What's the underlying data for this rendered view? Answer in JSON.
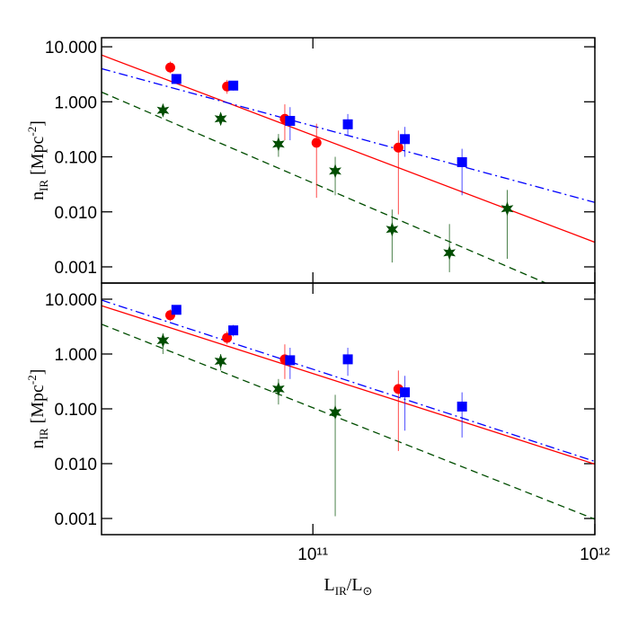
{
  "chart_data": [
    {
      "type": "scatter",
      "ylabel": [
        "n",
        "IR",
        " [Mpc",
        "-2",
        "]"
      ],
      "xscale": "log",
      "yscale": "log",
      "xlim": [
        17800000000.0,
        1000000000000.0
      ],
      "ylim": [
        0.000508,
        14.6
      ],
      "xticks": [
        100000000000.0,
        1000000000000.0
      ],
      "yticks": [
        {
          "value": 10,
          "label": "10.000"
        },
        {
          "value": 1,
          "label": "1.000"
        },
        {
          "value": 0.1,
          "label": "0.100"
        },
        {
          "value": 0.01,
          "label": "0.010"
        },
        {
          "value": 0.001,
          "label": "0.001"
        }
      ],
      "series": [
        {
          "color": "#ff0000",
          "marker": "circle",
          "x": [
            31200000000.0,
            49600000000.0,
            79500000000.0,
            103000000000.0,
            201000000000.0
          ],
          "values": [
            4.2,
            1.9,
            0.49,
            0.18,
            0.147
          ],
          "ylow": [
            3.3,
            1.4,
            0.2,
            0.018,
            0.009
          ],
          "yhigh": [
            5.4,
            2.5,
            0.9,
            0.4,
            0.3
          ]
        },
        {
          "color": "#0000ff",
          "marker": "square",
          "x": [
            32800000000.0,
            52200000000.0,
            83000000000.0,
            133000000000.0,
            212000000000.0,
            338000000000.0
          ],
          "values": [
            2.6,
            1.97,
            0.45,
            0.39,
            0.21,
            0.08
          ],
          "ylow": [
            2.2,
            1.6,
            0.2,
            0.25,
            0.1,
            0.02
          ],
          "yhigh": [
            3.1,
            2.4,
            0.8,
            0.6,
            0.35,
            0.14
          ]
        },
        {
          "color": "#004d00",
          "marker": "star",
          "x": [
            29400000000.0,
            47100000000.0,
            75500000000.0,
            120000000000.0,
            191000000000.0,
            305000000000.0,
            489000000000.0
          ],
          "values": [
            0.7,
            0.49,
            0.17,
            0.055,
            0.0048,
            0.0018,
            0.0114
          ],
          "ylow": [
            0.55,
            0.38,
            0.1,
            0.02,
            0.0012,
            0.0008,
            0.0014
          ],
          "yhigh": [
            0.85,
            0.62,
            0.26,
            0.1,
            0.011,
            0.006,
            0.025
          ]
        }
      ],
      "fits": [
        {
          "color": "#ff0000",
          "dash": "solid",
          "x": [
            17800000000.0,
            1000000000000.0
          ],
          "values": [
            7.1,
            0.0028
          ]
        },
        {
          "color": "#0000ff",
          "dash": "dashdot",
          "x": [
            17800000000.0,
            1000000000000.0
          ],
          "values": [
            4.0,
            0.0148
          ]
        },
        {
          "color": "#004d00",
          "dash": "dashed",
          "x": [
            17800000000.0,
            1000000000000.0
          ],
          "values": [
            1.5,
            0.00021
          ]
        }
      ]
    },
    {
      "type": "scatter",
      "ylabel": [
        "n",
        "IR",
        " [Mpc",
        "-2",
        "]"
      ],
      "xlabel": [
        "L",
        "IR",
        "/L",
        "⊙"
      ],
      "xscale": "log",
      "yscale": "log",
      "xlim": [
        17800000000.0,
        1000000000000.0
      ],
      "ylim": [
        0.000507,
        19.7
      ],
      "xticks": [
        {
          "value": 100000000000.0,
          "label": "10¹¹"
        },
        {
          "value": 1000000000000.0,
          "label": "10¹²"
        }
      ],
      "yticks": [
        {
          "value": 10,
          "label": "10.000"
        },
        {
          "value": 1,
          "label": "1.000"
        },
        {
          "value": 0.1,
          "label": "0.100"
        },
        {
          "value": 0.01,
          "label": "0.010"
        },
        {
          "value": 0.001,
          "label": "0.001"
        }
      ],
      "series": [
        {
          "color": "#ff0000",
          "marker": "circle",
          "x": [
            31200000000.0,
            49600000000.0,
            79500000000.0,
            201000000000.0
          ],
          "values": [
            5.1,
            1.97,
            0.8,
            0.23
          ],
          "ylow": [
            4.0,
            1.5,
            0.35,
            0.017
          ],
          "yhigh": [
            6.5,
            2.6,
            1.5,
            0.5
          ]
        },
        {
          "color": "#0000ff",
          "marker": "square",
          "x": [
            32800000000.0,
            52200000000.0,
            83000000000.0,
            133000000000.0,
            212000000000.0,
            338000000000.0
          ],
          "values": [
            6.4,
            2.7,
            0.77,
            0.8,
            0.2,
            0.11
          ],
          "ylow": [
            5.5,
            2.1,
            0.35,
            0.4,
            0.04,
            0.03
          ],
          "yhigh": [
            7.5,
            3.4,
            1.3,
            1.3,
            0.4,
            0.2
          ]
        },
        {
          "color": "#004d00",
          "marker": "star",
          "x": [
            29400000000.0,
            47100000000.0,
            75500000000.0,
            120000000000.0
          ],
          "values": [
            1.76,
            0.74,
            0.23,
            0.086
          ],
          "ylow": [
            1.0,
            0.5,
            0.12,
            0.0011
          ],
          "yhigh": [
            2.4,
            1.0,
            0.35,
            0.18
          ]
        }
      ],
      "fits": [
        {
          "color": "#ff0000",
          "dash": "solid",
          "x": [
            17800000000.0,
            1000000000000.0
          ],
          "values": [
            7.6,
            0.0098
          ]
        },
        {
          "color": "#0000ff",
          "dash": "dashdot",
          "x": [
            17800000000.0,
            1000000000000.0
          ],
          "values": [
            9.6,
            0.011
          ]
        },
        {
          "color": "#004d00",
          "dash": "dashed",
          "x": [
            17800000000.0,
            1000000000000.0
          ],
          "values": [
            3.5,
            0.00097
          ]
        }
      ]
    }
  ]
}
